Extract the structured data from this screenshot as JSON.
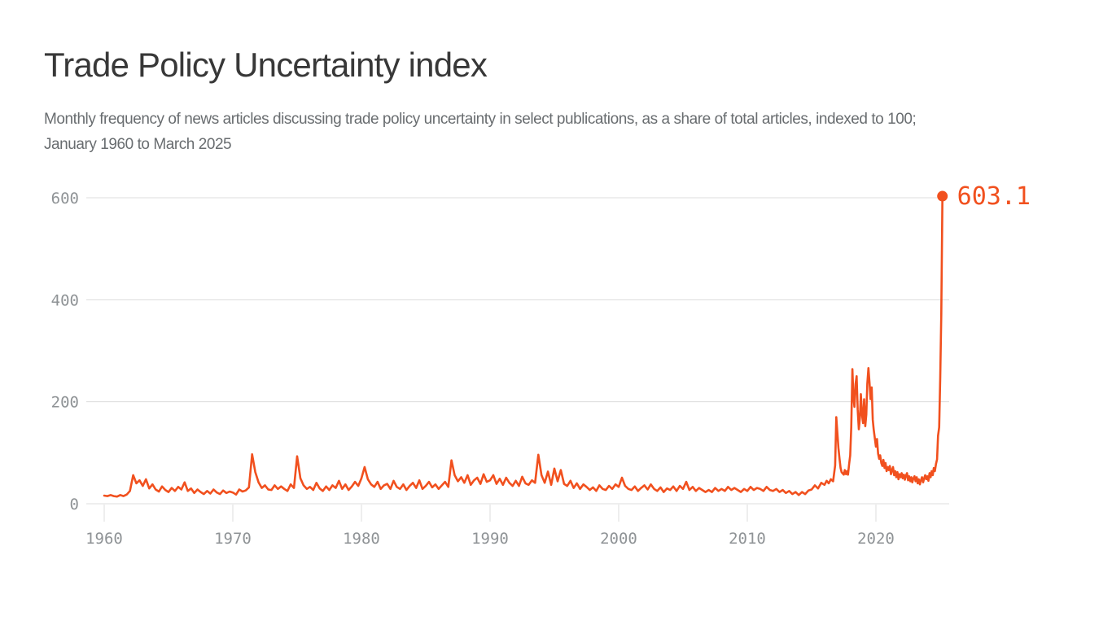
{
  "chart": {
    "title": "Trade Policy Uncertainty index",
    "subtitle_lines": [
      "Monthly frequency of news articles discussing trade policy uncertainty in select publications, as a share of total articles, indexed to 100;",
      "January 1960 to March 2025"
    ]
  },
  "colors": {
    "line": "#F1501E",
    "end_label": "#F1501E",
    "title": "#383838",
    "subtitle": "#696D70",
    "tick_label": "#8F9396",
    "grid": "#DCDCDC",
    "background": "#FFFFFF"
  },
  "chart_data": {
    "type": "line",
    "series_name": "Trade Policy Uncertainty index",
    "x_unit": "year (monthly series)",
    "y_unit": "index (share of articles, indexed to 100)",
    "x_ticks": [
      1960,
      1970,
      1980,
      1990,
      2000,
      2010,
      2020
    ],
    "y_ticks": [
      0,
      200,
      400,
      600
    ],
    "x_domain": [
      1960,
      2025.25
    ],
    "y_domain": [
      0,
      620
    ],
    "grid": "horizontal-only",
    "legend": "none",
    "end_label": "603.1",
    "end_value": 603.1,
    "end_x": 2025.17,
    "points": [
      [
        1960.0,
        16
      ],
      [
        1960.25,
        15
      ],
      [
        1960.5,
        17
      ],
      [
        1960.75,
        15
      ],
      [
        1961.0,
        14
      ],
      [
        1961.25,
        17
      ],
      [
        1961.5,
        15
      ],
      [
        1961.75,
        18
      ],
      [
        1962.0,
        25
      ],
      [
        1962.25,
        56
      ],
      [
        1962.5,
        40
      ],
      [
        1962.75,
        46
      ],
      [
        1963.0,
        35
      ],
      [
        1963.25,
        48
      ],
      [
        1963.5,
        30
      ],
      [
        1963.75,
        38
      ],
      [
        1964.0,
        28
      ],
      [
        1964.25,
        24
      ],
      [
        1964.5,
        34
      ],
      [
        1964.75,
        27
      ],
      [
        1965.0,
        23
      ],
      [
        1965.25,
        31
      ],
      [
        1965.5,
        25
      ],
      [
        1965.75,
        33
      ],
      [
        1966.0,
        28
      ],
      [
        1966.25,
        42
      ],
      [
        1966.5,
        25
      ],
      [
        1966.75,
        30
      ],
      [
        1967.0,
        21
      ],
      [
        1967.25,
        28
      ],
      [
        1967.5,
        23
      ],
      [
        1967.75,
        19
      ],
      [
        1968.0,
        25
      ],
      [
        1968.25,
        20
      ],
      [
        1968.5,
        28
      ],
      [
        1968.75,
        22
      ],
      [
        1969.0,
        19
      ],
      [
        1969.25,
        26
      ],
      [
        1969.5,
        21
      ],
      [
        1969.75,
        24
      ],
      [
        1970.0,
        22
      ],
      [
        1970.25,
        18
      ],
      [
        1970.5,
        28
      ],
      [
        1970.75,
        24
      ],
      [
        1971.0,
        26
      ],
      [
        1971.25,
        32
      ],
      [
        1971.5,
        97
      ],
      [
        1971.75,
        62
      ],
      [
        1972.0,
        42
      ],
      [
        1972.25,
        31
      ],
      [
        1972.5,
        36
      ],
      [
        1972.75,
        28
      ],
      [
        1973.0,
        27
      ],
      [
        1973.25,
        36
      ],
      [
        1973.5,
        29
      ],
      [
        1973.75,
        34
      ],
      [
        1974.0,
        29
      ],
      [
        1974.25,
        25
      ],
      [
        1974.5,
        38
      ],
      [
        1974.75,
        31
      ],
      [
        1975.0,
        93
      ],
      [
        1975.25,
        50
      ],
      [
        1975.5,
        36
      ],
      [
        1975.75,
        29
      ],
      [
        1976.0,
        33
      ],
      [
        1976.25,
        27
      ],
      [
        1976.5,
        41
      ],
      [
        1976.75,
        30
      ],
      [
        1977.0,
        25
      ],
      [
        1977.25,
        34
      ],
      [
        1977.5,
        27
      ],
      [
        1977.75,
        36
      ],
      [
        1978.0,
        31
      ],
      [
        1978.25,
        45
      ],
      [
        1978.5,
        29
      ],
      [
        1978.75,
        38
      ],
      [
        1979.0,
        27
      ],
      [
        1979.25,
        34
      ],
      [
        1979.5,
        43
      ],
      [
        1979.75,
        35
      ],
      [
        1980.0,
        50
      ],
      [
        1980.25,
        72
      ],
      [
        1980.5,
        48
      ],
      [
        1980.75,
        38
      ],
      [
        1981.0,
        33
      ],
      [
        1981.25,
        43
      ],
      [
        1981.5,
        29
      ],
      [
        1981.75,
        36
      ],
      [
        1982.0,
        39
      ],
      [
        1982.25,
        29
      ],
      [
        1982.5,
        45
      ],
      [
        1982.75,
        33
      ],
      [
        1983.0,
        29
      ],
      [
        1983.25,
        38
      ],
      [
        1983.5,
        27
      ],
      [
        1983.75,
        35
      ],
      [
        1984.0,
        41
      ],
      [
        1984.25,
        31
      ],
      [
        1984.5,
        46
      ],
      [
        1984.75,
        29
      ],
      [
        1985.0,
        35
      ],
      [
        1985.25,
        43
      ],
      [
        1985.5,
        32
      ],
      [
        1985.75,
        38
      ],
      [
        1986.0,
        29
      ],
      [
        1986.25,
        36
      ],
      [
        1986.5,
        43
      ],
      [
        1986.75,
        33
      ],
      [
        1987.0,
        85
      ],
      [
        1987.25,
        56
      ],
      [
        1987.5,
        44
      ],
      [
        1987.75,
        52
      ],
      [
        1988.0,
        41
      ],
      [
        1988.25,
        56
      ],
      [
        1988.5,
        37
      ],
      [
        1988.75,
        46
      ],
      [
        1989.0,
        51
      ],
      [
        1989.25,
        39
      ],
      [
        1989.5,
        58
      ],
      [
        1989.75,
        43
      ],
      [
        1990.0,
        46
      ],
      [
        1990.25,
        56
      ],
      [
        1990.5,
        39
      ],
      [
        1990.75,
        49
      ],
      [
        1991.0,
        37
      ],
      [
        1991.25,
        51
      ],
      [
        1991.5,
        41
      ],
      [
        1991.75,
        35
      ],
      [
        1992.0,
        45
      ],
      [
        1992.25,
        35
      ],
      [
        1992.5,
        53
      ],
      [
        1992.75,
        40
      ],
      [
        1993.0,
        37
      ],
      [
        1993.25,
        46
      ],
      [
        1993.5,
        41
      ],
      [
        1993.75,
        96
      ],
      [
        1994.0,
        56
      ],
      [
        1994.25,
        41
      ],
      [
        1994.5,
        63
      ],
      [
        1994.75,
        37
      ],
      [
        1995.0,
        69
      ],
      [
        1995.25,
        44
      ],
      [
        1995.5,
        66
      ],
      [
        1995.75,
        39
      ],
      [
        1996.0,
        35
      ],
      [
        1996.25,
        45
      ],
      [
        1996.5,
        31
      ],
      [
        1996.75,
        40
      ],
      [
        1997.0,
        29
      ],
      [
        1997.25,
        38
      ],
      [
        1997.5,
        33
      ],
      [
        1997.75,
        27
      ],
      [
        1998.0,
        32
      ],
      [
        1998.25,
        25
      ],
      [
        1998.5,
        36
      ],
      [
        1998.75,
        29
      ],
      [
        1999.0,
        27
      ],
      [
        1999.25,
        35
      ],
      [
        1999.5,
        29
      ],
      [
        1999.75,
        38
      ],
      [
        2000.0,
        33
      ],
      [
        2000.25,
        51
      ],
      [
        2000.5,
        35
      ],
      [
        2000.75,
        29
      ],
      [
        2001.0,
        27
      ],
      [
        2001.25,
        34
      ],
      [
        2001.5,
        25
      ],
      [
        2001.75,
        31
      ],
      [
        2002.0,
        36
      ],
      [
        2002.25,
        28
      ],
      [
        2002.5,
        38
      ],
      [
        2002.75,
        29
      ],
      [
        2003.0,
        25
      ],
      [
        2003.25,
        32
      ],
      [
        2003.5,
        23
      ],
      [
        2003.75,
        30
      ],
      [
        2004.0,
        27
      ],
      [
        2004.25,
        34
      ],
      [
        2004.5,
        25
      ],
      [
        2004.75,
        35
      ],
      [
        2005.0,
        29
      ],
      [
        2005.25,
        43
      ],
      [
        2005.5,
        27
      ],
      [
        2005.75,
        33
      ],
      [
        2006.0,
        25
      ],
      [
        2006.25,
        31
      ],
      [
        2006.5,
        27
      ],
      [
        2006.75,
        23
      ],
      [
        2007.0,
        27
      ],
      [
        2007.25,
        23
      ],
      [
        2007.5,
        31
      ],
      [
        2007.75,
        25
      ],
      [
        2008.0,
        29
      ],
      [
        2008.25,
        25
      ],
      [
        2008.5,
        33
      ],
      [
        2008.75,
        27
      ],
      [
        2009.0,
        31
      ],
      [
        2009.25,
        27
      ],
      [
        2009.5,
        23
      ],
      [
        2009.75,
        29
      ],
      [
        2010.0,
        25
      ],
      [
        2010.25,
        33
      ],
      [
        2010.5,
        27
      ],
      [
        2010.75,
        31
      ],
      [
        2011.0,
        29
      ],
      [
        2011.25,
        25
      ],
      [
        2011.5,
        33
      ],
      [
        2011.75,
        27
      ],
      [
        2012.0,
        25
      ],
      [
        2012.25,
        29
      ],
      [
        2012.5,
        23
      ],
      [
        2012.75,
        27
      ],
      [
        2013.0,
        21
      ],
      [
        2013.25,
        25
      ],
      [
        2013.5,
        19
      ],
      [
        2013.75,
        23
      ],
      [
        2014.0,
        17
      ],
      [
        2014.25,
        23
      ],
      [
        2014.5,
        19
      ],
      [
        2014.75,
        26
      ],
      [
        2015.0,
        28
      ],
      [
        2015.25,
        36
      ],
      [
        2015.5,
        30
      ],
      [
        2015.75,
        41
      ],
      [
        2016.0,
        37
      ],
      [
        2016.17,
        45
      ],
      [
        2016.33,
        40
      ],
      [
        2016.5,
        48
      ],
      [
        2016.67,
        44
      ],
      [
        2016.83,
        75
      ],
      [
        2016.92,
        170
      ],
      [
        2017.0,
        140
      ],
      [
        2017.08,
        110
      ],
      [
        2017.17,
        88
      ],
      [
        2017.25,
        70
      ],
      [
        2017.33,
        62
      ],
      [
        2017.5,
        57
      ],
      [
        2017.58,
        66
      ],
      [
        2017.67,
        58
      ],
      [
        2017.75,
        64
      ],
      [
        2017.83,
        57
      ],
      [
        2017.92,
        78
      ],
      [
        2018.0,
        95
      ],
      [
        2018.08,
        150
      ],
      [
        2018.17,
        264
      ],
      [
        2018.25,
        210
      ],
      [
        2018.33,
        190
      ],
      [
        2018.42,
        235
      ],
      [
        2018.5,
        250
      ],
      [
        2018.58,
        185
      ],
      [
        2018.67,
        146
      ],
      [
        2018.75,
        168
      ],
      [
        2018.83,
        215
      ],
      [
        2018.92,
        175
      ],
      [
        2019.0,
        158
      ],
      [
        2019.08,
        205
      ],
      [
        2019.17,
        152
      ],
      [
        2019.25,
        175
      ],
      [
        2019.33,
        235
      ],
      [
        2019.42,
        266
      ],
      [
        2019.5,
        238
      ],
      [
        2019.58,
        205
      ],
      [
        2019.67,
        228
      ],
      [
        2019.75,
        165
      ],
      [
        2019.83,
        145
      ],
      [
        2019.92,
        128
      ],
      [
        2020.0,
        112
      ],
      [
        2020.08,
        127
      ],
      [
        2020.17,
        98
      ],
      [
        2020.25,
        88
      ],
      [
        2020.33,
        95
      ],
      [
        2020.42,
        80
      ],
      [
        2020.5,
        74
      ],
      [
        2020.58,
        86
      ],
      [
        2020.67,
        70
      ],
      [
        2020.75,
        80
      ],
      [
        2020.83,
        64
      ],
      [
        2020.92,
        72
      ],
      [
        2021.0,
        66
      ],
      [
        2021.08,
        74
      ],
      [
        2021.17,
        58
      ],
      [
        2021.25,
        66
      ],
      [
        2021.33,
        72
      ],
      [
        2021.42,
        56
      ],
      [
        2021.5,
        64
      ],
      [
        2021.58,
        52
      ],
      [
        2021.67,
        62
      ],
      [
        2021.75,
        48
      ],
      [
        2021.83,
        58
      ],
      [
        2021.92,
        52
      ],
      [
        2022.0,
        60
      ],
      [
        2022.08,
        50
      ],
      [
        2022.17,
        57
      ],
      [
        2022.25,
        47
      ],
      [
        2022.33,
        55
      ],
      [
        2022.42,
        60
      ],
      [
        2022.5,
        46
      ],
      [
        2022.58,
        54
      ],
      [
        2022.67,
        44
      ],
      [
        2022.75,
        52
      ],
      [
        2022.83,
        42
      ],
      [
        2022.92,
        50
      ],
      [
        2023.0,
        54
      ],
      [
        2023.08,
        44
      ],
      [
        2023.17,
        52
      ],
      [
        2023.25,
        40
      ],
      [
        2023.33,
        48
      ],
      [
        2023.42,
        38
      ],
      [
        2023.5,
        46
      ],
      [
        2023.58,
        52
      ],
      [
        2023.67,
        42
      ],
      [
        2023.75,
        50
      ],
      [
        2023.83,
        56
      ],
      [
        2023.92,
        48
      ],
      [
        2024.0,
        54
      ],
      [
        2024.08,
        45
      ],
      [
        2024.17,
        60
      ],
      [
        2024.25,
        52
      ],
      [
        2024.33,
        64
      ],
      [
        2024.42,
        56
      ],
      [
        2024.5,
        70
      ],
      [
        2024.58,
        64
      ],
      [
        2024.67,
        78
      ],
      [
        2024.75,
        87
      ],
      [
        2024.83,
        133
      ],
      [
        2024.92,
        150
      ],
      [
        2025.0,
        247
      ],
      [
        2025.08,
        372
      ],
      [
        2025.17,
        603.1
      ]
    ]
  }
}
